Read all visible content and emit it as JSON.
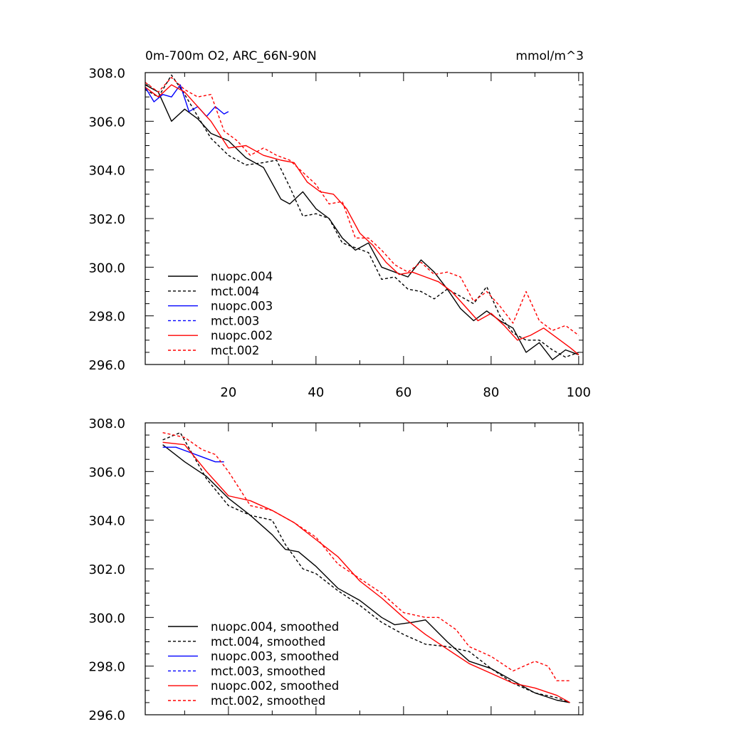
{
  "chart_data": [
    {
      "type": "line",
      "title": "0m-700m O2, ARC_66N-90N",
      "units": "mmol/m^3",
      "xlim": [
        1,
        101
      ],
      "ylim": [
        296.0,
        308.0
      ],
      "x_ticks": [
        20,
        40,
        60,
        80,
        100
      ],
      "x_tick_labels": [
        "20",
        "40",
        "60",
        "80",
        "100"
      ],
      "y_ticks": [
        296,
        298,
        300,
        302,
        304,
        306,
        308
      ],
      "y_tick_labels": [
        "296.0",
        "298.0",
        "300.0",
        "302.0",
        "304.0",
        "306.0",
        "308.0"
      ],
      "legend_position": "bottom-left",
      "grid": false,
      "series": [
        {
          "name": "nuopc.004",
          "color": "#000000",
          "dash": "solid",
          "x": [
            1,
            4,
            7,
            10,
            13,
            16,
            20,
            24,
            28,
            32,
            34,
            37,
            40,
            43,
            46,
            49,
            52,
            55,
            58,
            61,
            64,
            67,
            70,
            73,
            76,
            79,
            82,
            85,
            88,
            91,
            94,
            97,
            100
          ],
          "y": [
            307.5,
            307.2,
            306.0,
            306.5,
            306.1,
            305.5,
            305.2,
            304.5,
            304.1,
            302.8,
            302.6,
            303.1,
            302.4,
            302.0,
            301.2,
            300.7,
            301.0,
            300.0,
            299.8,
            299.6,
            300.3,
            299.8,
            299.1,
            298.3,
            297.8,
            298.2,
            297.8,
            297.5,
            296.5,
            296.9,
            296.2,
            296.6,
            296.4
          ]
        },
        {
          "name": "mct.004",
          "color": "#000000",
          "dash": "dashed",
          "x": [
            1,
            4,
            7,
            10,
            13,
            16,
            20,
            24,
            28,
            31,
            34,
            37,
            40,
            43,
            46,
            49,
            52,
            55,
            58,
            61,
            64,
            67,
            70,
            73,
            76,
            79,
            82,
            85,
            88,
            91,
            94,
            97,
            100
          ],
          "y": [
            307.3,
            307.0,
            307.9,
            307.1,
            306.2,
            305.3,
            304.6,
            304.2,
            304.3,
            304.4,
            303.3,
            302.1,
            302.2,
            302.0,
            301.0,
            300.8,
            300.6,
            299.5,
            299.6,
            299.1,
            299.0,
            298.7,
            299.1,
            298.8,
            298.5,
            299.2,
            298.0,
            297.3,
            297.0,
            297.0,
            296.6,
            296.3,
            296.5
          ]
        },
        {
          "name": "nuopc.003",
          "color": "#0000ff",
          "dash": "solid",
          "x": [
            1,
            3,
            5,
            7,
            9,
            11,
            13,
            15,
            17,
            19,
            20
          ],
          "y": [
            307.4,
            306.8,
            307.1,
            307.0,
            307.5,
            306.4,
            306.6,
            306.2,
            306.6,
            306.3,
            306.4
          ]
        },
        {
          "name": "mct.003",
          "color": "#0000ff",
          "dash": "dashed",
          "x": [],
          "y": []
        },
        {
          "name": "nuopc.002",
          "color": "#ff0000",
          "dash": "solid",
          "x": [
            1,
            4,
            7,
            10,
            13,
            16,
            20,
            24,
            28,
            32,
            35,
            38,
            41,
            44,
            47,
            50,
            53,
            56,
            59,
            62,
            65,
            68,
            71,
            74,
            77,
            80,
            83,
            86,
            89,
            92,
            95,
            98,
            100
          ],
          "y": [
            307.4,
            307.0,
            307.5,
            307.2,
            306.6,
            306.0,
            304.9,
            305.0,
            304.6,
            304.4,
            304.3,
            303.5,
            303.1,
            303.0,
            302.4,
            301.4,
            300.9,
            300.2,
            299.7,
            299.8,
            299.6,
            299.4,
            299.0,
            298.4,
            297.8,
            298.1,
            297.6,
            297.0,
            297.2,
            297.5,
            297.1,
            296.7,
            296.4
          ]
        },
        {
          "name": "mct.002",
          "color": "#ff0000",
          "dash": "dashed",
          "x": [
            1,
            4,
            7,
            10,
            13,
            16,
            19,
            22,
            25,
            28,
            31,
            34,
            37,
            40,
            43,
            46,
            49,
            52,
            55,
            58,
            61,
            64,
            67,
            70,
            73,
            76,
            79,
            82,
            85,
            88,
            91,
            94,
            97,
            100
          ],
          "y": [
            307.6,
            307.2,
            307.8,
            307.3,
            307.0,
            307.1,
            305.6,
            305.2,
            304.6,
            304.9,
            304.6,
            304.4,
            303.9,
            303.4,
            302.6,
            302.7,
            301.2,
            301.2,
            300.7,
            300.1,
            299.8,
            300.2,
            299.7,
            299.8,
            299.6,
            298.6,
            299.0,
            298.4,
            297.7,
            299.0,
            297.8,
            297.4,
            297.6,
            297.2
          ]
        }
      ]
    },
    {
      "type": "line",
      "title": "",
      "xlim": [
        1,
        101
      ],
      "ylim": [
        296.0,
        308.0
      ],
      "y_ticks": [
        296,
        298,
        300,
        302,
        304,
        306,
        308
      ],
      "y_tick_labels": [
        "296.0",
        "298.0",
        "300.0",
        "302.0",
        "304.0",
        "306.0",
        "308.0"
      ],
      "legend_position": "bottom-left",
      "grid": false,
      "series": [
        {
          "name": "nuopc.004, smoothed",
          "color": "#000000",
          "dash": "solid",
          "x": [
            5,
            10,
            15,
            20,
            25,
            30,
            33,
            36,
            40,
            45,
            50,
            55,
            58,
            62,
            65,
            70,
            75,
            80,
            85,
            90,
            95,
            98
          ],
          "y": [
            307.1,
            306.4,
            305.8,
            304.9,
            304.2,
            303.4,
            302.8,
            302.7,
            302.1,
            301.2,
            300.7,
            300.0,
            299.7,
            299.8,
            299.9,
            299.0,
            298.2,
            297.9,
            297.4,
            296.9,
            296.6,
            296.5
          ]
        },
        {
          "name": "mct.004, smoothed",
          "color": "#000000",
          "dash": "dashed",
          "x": [
            5,
            9,
            15,
            20,
            25,
            30,
            33,
            37,
            40,
            45,
            50,
            55,
            60,
            65,
            70,
            75,
            80,
            85,
            90,
            95,
            98
          ],
          "y": [
            307.3,
            307.6,
            305.7,
            304.6,
            304.2,
            304.0,
            303.0,
            302.0,
            301.8,
            301.1,
            300.5,
            299.8,
            299.3,
            298.9,
            298.8,
            298.6,
            297.9,
            297.3,
            296.9,
            296.7,
            296.5
          ]
        },
        {
          "name": "nuopc.003, smoothed",
          "color": "#0000ff",
          "dash": "solid",
          "x": [
            5,
            8,
            11,
            14,
            17,
            19
          ],
          "y": [
            307.0,
            307.0,
            306.8,
            306.6,
            306.4,
            306.4
          ]
        },
        {
          "name": "mct.003, smoothed",
          "color": "#0000ff",
          "dash": "dashed",
          "x": [],
          "y": []
        },
        {
          "name": "nuopc.002, smoothed",
          "color": "#ff0000",
          "dash": "solid",
          "x": [
            5,
            10,
            15,
            20,
            25,
            30,
            35,
            40,
            45,
            50,
            55,
            60,
            65,
            70,
            75,
            80,
            85,
            90,
            95,
            98
          ],
          "y": [
            307.2,
            307.1,
            306.0,
            305.0,
            304.8,
            304.4,
            303.9,
            303.2,
            302.5,
            301.5,
            300.8,
            300.0,
            299.3,
            298.7,
            298.1,
            297.7,
            297.3,
            297.1,
            296.8,
            296.5
          ]
        },
        {
          "name": "mct.002, smoothed",
          "color": "#ff0000",
          "dash": "dashed",
          "x": [
            5,
            10,
            14,
            17,
            20,
            25,
            30,
            35,
            40,
            45,
            50,
            55,
            60,
            65,
            68,
            72,
            75,
            80,
            85,
            90,
            93,
            95,
            98
          ],
          "y": [
            307.6,
            307.4,
            306.9,
            306.7,
            306.0,
            304.6,
            304.4,
            303.9,
            303.3,
            302.2,
            301.6,
            301.0,
            300.2,
            300.0,
            300.0,
            299.5,
            298.8,
            298.4,
            297.8,
            298.2,
            298.0,
            297.4,
            297.4
          ]
        }
      ]
    }
  ]
}
